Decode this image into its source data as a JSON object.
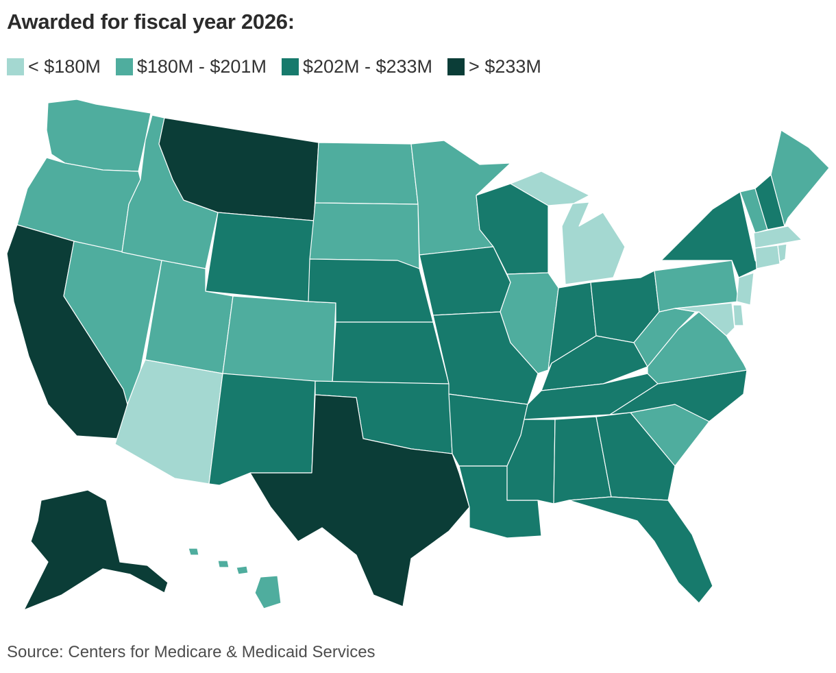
{
  "title": "Awarded for fiscal year 2026:",
  "source": "Source: Centers for Medicare & Medicaid Services",
  "legend": [
    {
      "label": "< $180M",
      "color": "#a4d8d1"
    },
    {
      "label": "$180M - $201M",
      "color": "#4fad9e"
    },
    {
      "label": "$202M - $233M",
      "color": "#177a6c"
    },
    {
      "label": "> $233M",
      "color": "#0b3d37"
    }
  ],
  "states": {
    "WA": 1,
    "OR": 1,
    "CA": 3,
    "NV": 1,
    "ID": 1,
    "MT": 3,
    "WY": 2,
    "UT": 1,
    "AZ": 0,
    "CO": 1,
    "NM": 2,
    "ND": 1,
    "SD": 1,
    "NE": 2,
    "KS": 2,
    "OK": 2,
    "TX": 3,
    "MN": 1,
    "IA": 2,
    "MO": 2,
    "AR": 2,
    "LA": 2,
    "WI": 2,
    "IL": 1,
    "MI": 0,
    "IN": 2,
    "OH": 2,
    "KY": 2,
    "TN": 2,
    "MS": 2,
    "AL": 2,
    "GA": 2,
    "FL": 2,
    "SC": 1,
    "NC": 2,
    "VA": 1,
    "WV": 1,
    "PA": 1,
    "NY": 2,
    "VT": 1,
    "NH": 2,
    "ME": 1,
    "MA": 0,
    "CT": 0,
    "RI": 0,
    "NJ": 0,
    "DE": 0,
    "MD": 0,
    "AK": 3,
    "HI": 1
  }
}
